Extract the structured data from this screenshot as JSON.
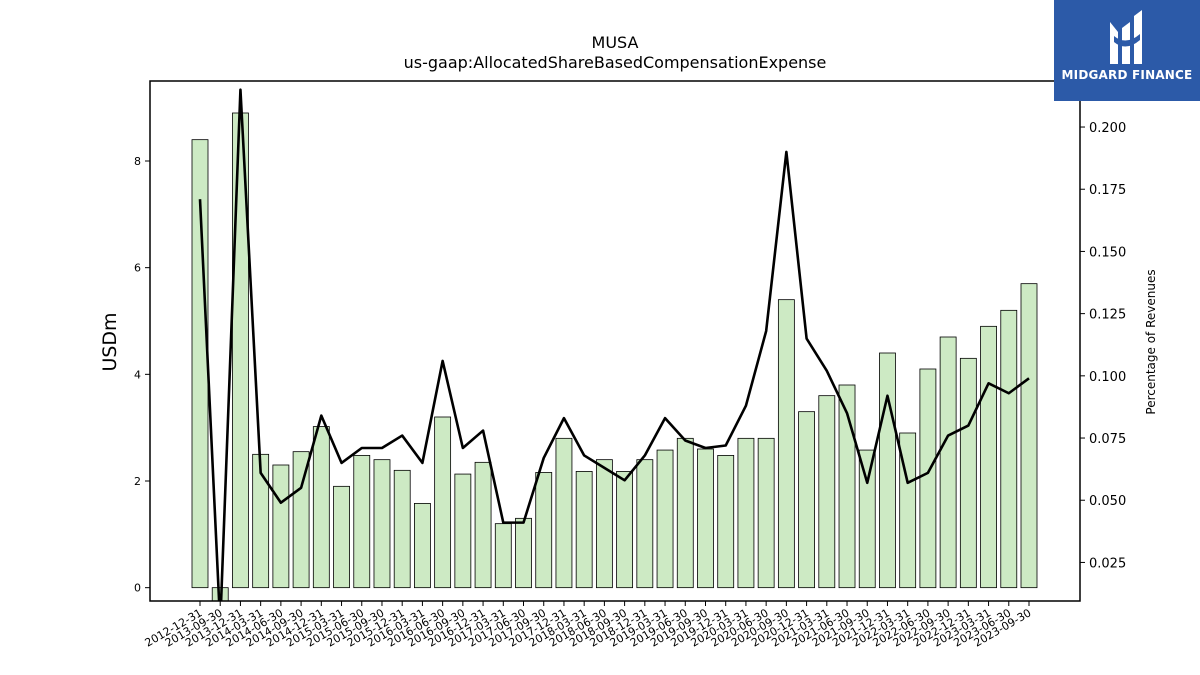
{
  "chart_data": {
    "type": "bar+line",
    "title": "MUSA",
    "subtitle": "us-gaap:AllocatedShareBasedCompensationExpense",
    "ylabel": "USDm",
    "ylabel_right": "Percentage of Revenues",
    "ylim": [
      -0.25,
      9.5
    ],
    "ylim_right": [
      0.0095,
      0.2185
    ],
    "yticks_left": [
      0,
      2,
      4,
      6,
      8
    ],
    "yticks_right": [
      0.025,
      0.05,
      0.075,
      0.1,
      0.125,
      0.15,
      0.175,
      0.2
    ],
    "categories": [
      "2012-12-31",
      "2013-09-30",
      "2013-12-31",
      "2014-03-31",
      "2014-06-30",
      "2014-09-30",
      "2014-12-31",
      "2015-03-31",
      "2015-06-30",
      "2015-09-30",
      "2015-12-31",
      "2016-03-31",
      "2016-06-30",
      "2016-09-30",
      "2016-12-31",
      "2017-03-31",
      "2017-06-30",
      "2017-09-30",
      "2017-12-31",
      "2018-03-31",
      "2018-06-30",
      "2018-09-30",
      "2018-12-31",
      "2019-03-31",
      "2019-06-30",
      "2019-09-30",
      "2019-12-31",
      "2020-03-31",
      "2020-06-30",
      "2020-09-30",
      "2020-12-31",
      "2021-03-31",
      "2021-06-30",
      "2021-09-30",
      "2021-12-31",
      "2022-03-31",
      "2022-06-30",
      "2022-09-30",
      "2022-12-31",
      "2023-03-31",
      "2023-06-30",
      "2023-09-30"
    ],
    "series": [
      {
        "kind": "bar",
        "axis": "left",
        "color": "#cdeac4",
        "edge_color": "#000000",
        "values": [
          8.4,
          -0.6,
          8.9,
          2.5,
          2.3,
          2.55,
          3.02,
          1.9,
          2.48,
          2.4,
          2.2,
          1.58,
          3.2,
          2.13,
          2.35,
          1.2,
          1.3,
          2.16,
          2.8,
          2.18,
          2.4,
          2.18,
          2.4,
          2.58,
          2.8,
          2.6,
          2.48,
          2.8,
          2.8,
          5.4,
          3.3,
          3.6,
          3.8,
          2.58,
          4.4,
          2.9,
          4.1,
          4.7,
          4.3,
          4.9,
          5.2,
          5.7
        ]
      },
      {
        "kind": "line",
        "axis": "right",
        "color": "#000000",
        "values": [
          0.171,
          0.0,
          0.215,
          0.061,
          0.049,
          0.055,
          0.084,
          0.065,
          0.071,
          0.071,
          0.076,
          0.065,
          0.106,
          0.071,
          0.078,
          0.041,
          0.041,
          0.067,
          0.083,
          0.068,
          0.063,
          0.058,
          0.068,
          0.083,
          0.074,
          0.071,
          0.072,
          0.088,
          0.118,
          0.19,
          0.115,
          0.102,
          0.085,
          0.057,
          0.092,
          0.057,
          0.061,
          0.076,
          0.08,
          0.097,
          0.093,
          0.099
        ]
      }
    ]
  },
  "logo": {
    "text": "MIDGARD FINANCE",
    "color": "#2c5aa8"
  }
}
